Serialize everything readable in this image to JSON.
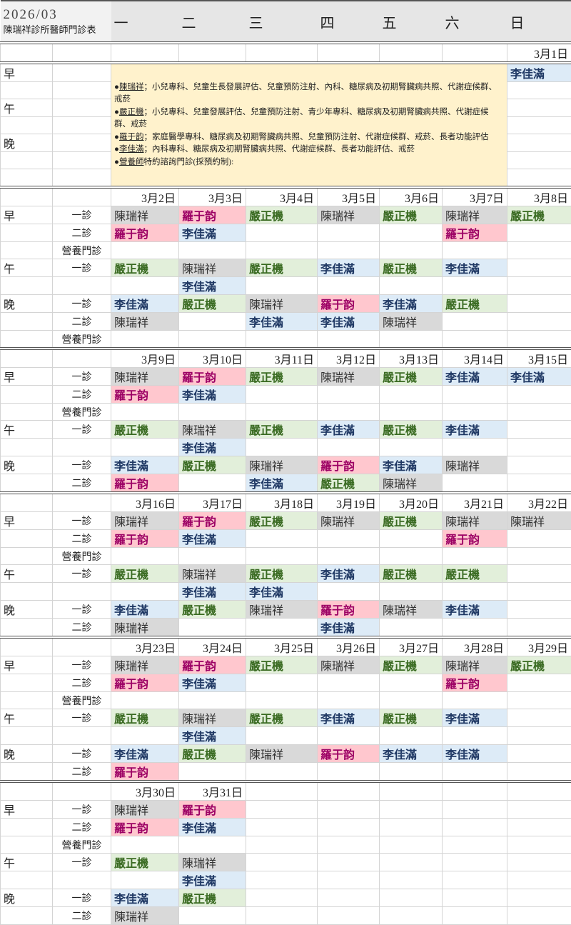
{
  "header": {
    "year_month": "2026/03",
    "title": "陳瑞祥診所醫師門診表",
    "weekdays": [
      "一",
      "二",
      "三",
      "四",
      "五",
      "六",
      "日"
    ]
  },
  "doctor_colors": {
    "陳瑞祥": "#d9d9d9",
    "羅于韵": "#ffc7ce",
    "嚴正機": "#e2efda",
    "李佳滿": "#ddebf7"
  },
  "notes": [
    {
      "name": "陳瑞祥",
      "text": "；小兒專科、兒童生長發展評估、兒童預防注射、內科、糖尿病及初期腎臟病共照、代謝症候群、戒菸"
    },
    {
      "name": "嚴正機",
      "text": "；小兒專科、兒童發展評估、兒童預防注射、青少年專科、糖尿病及初期腎臟病共照、代謝症候群、戒菸"
    },
    {
      "name": "羅于韵",
      "text": "；家庭醫學專科、糖尿病及初期腎臟病共照、兒童預防注射、代謝症候群、戒菸、長者功能評估"
    },
    {
      "name": "李佳滿",
      "text": "；內科專科、糖尿病及初期腎臟病共照、代謝症候群、長者功能評估、戒菸"
    },
    {
      "name": "營養師",
      "text": "特約諮詢門診(採預約制):"
    }
  ],
  "week0": {
    "date": "3月1日",
    "periods": [
      "早",
      "午",
      "晚"
    ],
    "sunday_morning": "李佳滿"
  },
  "weeks": [
    {
      "dates": [
        "3月2日",
        "3月3日",
        "3月4日",
        "3月5日",
        "3月6日",
        "3月7日",
        "3月8日"
      ],
      "rows": [
        {
          "period": "早",
          "clinic": "一診",
          "cells": [
            "陳瑞祥",
            "羅于韵",
            "嚴正機",
            "陳瑞祥",
            "嚴正機",
            "陳瑞祥",
            "嚴正機"
          ]
        },
        {
          "period": "",
          "clinic": "二診",
          "cells": [
            "羅于韵",
            "李佳滿",
            "",
            "",
            "",
            "羅于韵",
            ""
          ]
        },
        {
          "period": "",
          "clinic": "營養門診",
          "cells": [
            "",
            "",
            "",
            "",
            "",
            "",
            ""
          ]
        },
        {
          "period": "午",
          "clinic": "一診",
          "cells": [
            "嚴正機",
            "陳瑞祥",
            "嚴正機",
            "李佳滿",
            "嚴正機",
            "李佳滿",
            ""
          ]
        },
        {
          "period": "",
          "clinic": "",
          "cells": [
            "",
            "李佳滿",
            "",
            "",
            "",
            "",
            ""
          ]
        },
        {
          "period": "晚",
          "clinic": "一診",
          "cells": [
            "李佳滿",
            "嚴正機",
            "陳瑞祥",
            "羅于韵",
            "李佳滿",
            "嚴正機",
            ""
          ]
        },
        {
          "period": "",
          "clinic": "二診",
          "cells": [
            "陳瑞祥",
            "",
            "李佳滿",
            "李佳滿",
            "陳瑞祥",
            "",
            ""
          ]
        },
        {
          "period": "",
          "clinic": "營養門診",
          "cells": [
            "",
            "",
            "",
            "",
            "",
            "",
            ""
          ]
        }
      ]
    },
    {
      "dates": [
        "3月9日",
        "3月10日",
        "3月11日",
        "3月12日",
        "3月13日",
        "3月14日",
        "3月15日"
      ],
      "rows": [
        {
          "period": "早",
          "clinic": "一診",
          "cells": [
            "陳瑞祥",
            "羅于韵",
            "嚴正機",
            "陳瑞祥",
            "嚴正機",
            "李佳滿",
            "李佳滿"
          ]
        },
        {
          "period": "",
          "clinic": "二診",
          "cells": [
            "羅于韵",
            "李佳滿",
            "",
            "",
            "",
            "",
            ""
          ]
        },
        {
          "period": "",
          "clinic": "營養門診",
          "cells": [
            "",
            "",
            "",
            "",
            "",
            "",
            ""
          ]
        },
        {
          "period": "午",
          "clinic": "一診",
          "cells": [
            "嚴正機",
            "陳瑞祥",
            "嚴正機",
            "李佳滿",
            "嚴正機",
            "李佳滿",
            ""
          ]
        },
        {
          "period": "",
          "clinic": "",
          "cells": [
            "",
            "李佳滿",
            "",
            "",
            "",
            "",
            ""
          ]
        },
        {
          "period": "晚",
          "clinic": "一診",
          "cells": [
            "李佳滿",
            "嚴正機",
            "陳瑞祥",
            "羅于韵",
            "李佳滿",
            "陳瑞祥",
            ""
          ]
        },
        {
          "period": "",
          "clinic": "二診",
          "cells": [
            "羅于韵",
            "",
            "李佳滿",
            "嚴正機",
            "陳瑞祥",
            "",
            ""
          ]
        }
      ]
    },
    {
      "dates": [
        "3月16日",
        "3月17日",
        "3月18日",
        "3月19日",
        "3月20日",
        "3月21日",
        "3月22日"
      ],
      "rows": [
        {
          "period": "早",
          "clinic": "一診",
          "cells": [
            "陳瑞祥",
            "羅于韵",
            "嚴正機",
            "陳瑞祥",
            "嚴正機",
            "陳瑞祥",
            "陳瑞祥"
          ]
        },
        {
          "period": "",
          "clinic": "二診",
          "cells": [
            "羅于韵",
            "李佳滿",
            "",
            "",
            "",
            "羅于韵",
            ""
          ]
        },
        {
          "period": "",
          "clinic": "營養門診",
          "cells": [
            "",
            "",
            "",
            "",
            "",
            "",
            ""
          ]
        },
        {
          "period": "午",
          "clinic": "一診",
          "cells": [
            "嚴正機",
            "陳瑞祥",
            "嚴正機",
            "李佳滿",
            "嚴正機",
            "嚴正機",
            ""
          ]
        },
        {
          "period": "",
          "clinic": "",
          "cells": [
            "",
            "李佳滿",
            "李佳滿",
            "",
            "",
            "",
            ""
          ]
        },
        {
          "period": "晚",
          "clinic": "一診",
          "cells": [
            "李佳滿",
            "嚴正機",
            "陳瑞祥",
            "羅于韵",
            "陳瑞祥",
            "李佳滿",
            ""
          ]
        },
        {
          "period": "",
          "clinic": "二診",
          "cells": [
            "陳瑞祥",
            "",
            "",
            "李佳滿",
            "",
            "",
            ""
          ]
        }
      ]
    },
    {
      "dates": [
        "3月23日",
        "3月24日",
        "3月25日",
        "3月26日",
        "3月27日",
        "3月28日",
        "3月29日"
      ],
      "rows": [
        {
          "period": "早",
          "clinic": "一診",
          "cells": [
            "陳瑞祥",
            "羅于韵",
            "嚴正機",
            "陳瑞祥",
            "嚴正機",
            "陳瑞祥",
            "嚴正機"
          ]
        },
        {
          "period": "",
          "clinic": "二診",
          "cells": [
            "羅于韵",
            "李佳滿",
            "",
            "",
            "",
            "羅于韵",
            ""
          ]
        },
        {
          "period": "",
          "clinic": "營養門診",
          "cells": [
            "",
            "",
            "",
            "",
            "",
            "",
            ""
          ]
        },
        {
          "period": "午",
          "clinic": "一診",
          "cells": [
            "嚴正機",
            "陳瑞祥",
            "嚴正機",
            "李佳滿",
            "嚴正機",
            "李佳滿",
            ""
          ]
        },
        {
          "period": "",
          "clinic": "",
          "cells": [
            "",
            "李佳滿",
            "",
            "",
            "",
            "",
            ""
          ]
        },
        {
          "period": "晚",
          "clinic": "一診",
          "cells": [
            "李佳滿",
            "嚴正機",
            "陳瑞祥",
            "羅于韵",
            "李佳滿",
            "李佳滿",
            ""
          ]
        },
        {
          "period": "",
          "clinic": "二診",
          "cells": [
            "羅于韵",
            "",
            "",
            "",
            "",
            "",
            ""
          ]
        }
      ]
    },
    {
      "dates": [
        "3月30日",
        "3月31日",
        "",
        "",
        "",
        "",
        ""
      ],
      "rows": [
        {
          "period": "早",
          "clinic": "一診",
          "cells": [
            "陳瑞祥",
            "羅于韵",
            "",
            "",
            "",
            "",
            ""
          ]
        },
        {
          "period": "",
          "clinic": "二診",
          "cells": [
            "羅于韵",
            "李佳滿",
            "",
            "",
            "",
            "",
            ""
          ]
        },
        {
          "period": "",
          "clinic": "營養門診",
          "cells": [
            "",
            "",
            "",
            "",
            "",
            "",
            ""
          ]
        },
        {
          "period": "午",
          "clinic": "一診",
          "cells": [
            "嚴正機",
            "陳瑞祥",
            "",
            "",
            "",
            "",
            ""
          ]
        },
        {
          "period": "",
          "clinic": "",
          "cells": [
            "",
            "李佳滿",
            "",
            "",
            "",
            "",
            ""
          ]
        },
        {
          "period": "晚",
          "clinic": "一診",
          "cells": [
            "李佳滿",
            "嚴正機",
            "",
            "",
            "",
            "",
            ""
          ]
        },
        {
          "period": "",
          "clinic": "二診",
          "cells": [
            "陳瑞祥",
            "",
            "",
            "",
            "",
            "",
            ""
          ]
        }
      ]
    }
  ]
}
